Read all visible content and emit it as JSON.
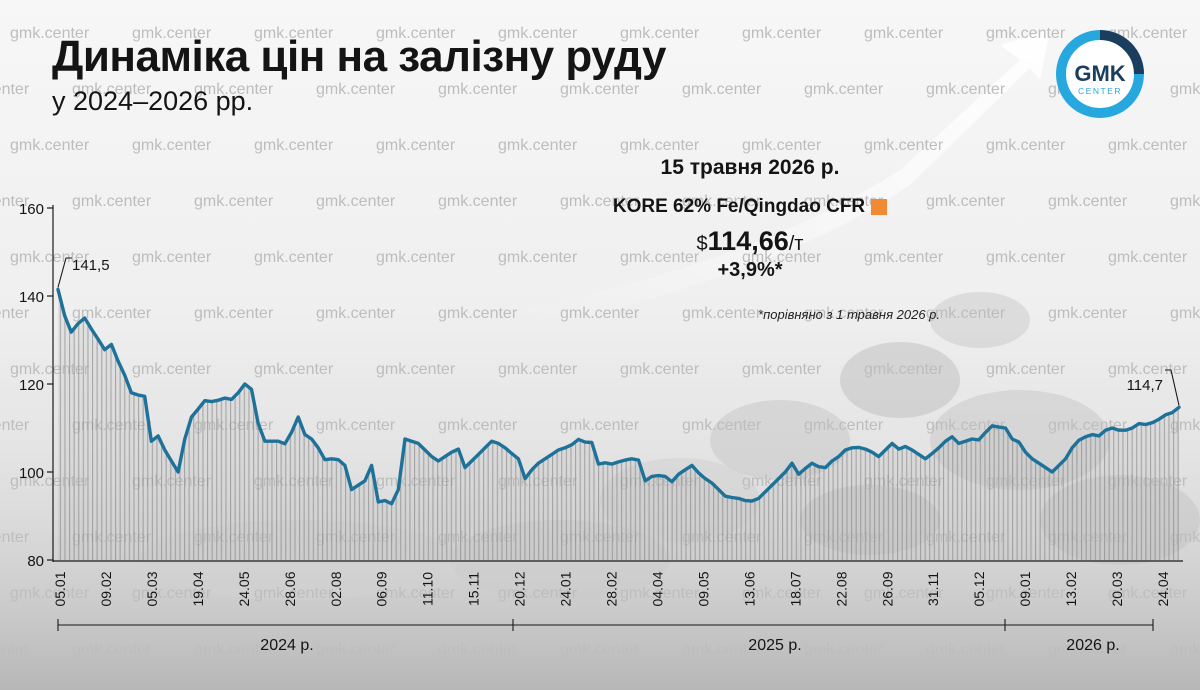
{
  "header": {
    "title": "Динаміка цін на залізну руду",
    "subtitle": "у 2024–2026 рр."
  },
  "logo": {
    "line1": "GMK",
    "line2": "CENTER"
  },
  "watermark": "gmk.center",
  "info": {
    "date": "15 травня 2026 р.",
    "product": "KORE 62% Fe/Qingdao CFR",
    "price_prefix": "$",
    "price_value": "114,66",
    "price_unit": "/т",
    "change": "+3,9%*",
    "note": "*порівняно з 1 травня 2026 р."
  },
  "colors": {
    "line": "#1e7199",
    "marker": "#f08a35",
    "text": "#141414"
  },
  "chart_data": {
    "type": "area",
    "y_ticks": [
      "160",
      "140",
      "120",
      "100",
      "80"
    ],
    "ylim": [
      80,
      160
    ],
    "x_tick_labels": [
      "05.01",
      "09.02",
      "05.03",
      "19.04",
      "24.05",
      "28.06",
      "02.08",
      "06.09",
      "11.10",
      "15.11",
      "20.12",
      "24.01",
      "28.02",
      "04.04",
      "09.05",
      "13.06",
      "18.07",
      "22.08",
      "26.09",
      "31.11",
      "05.12",
      "09.01",
      "13.02",
      "20.03",
      "24.04"
    ],
    "years": [
      "2024 р.",
      "2025 р.",
      "2026 р."
    ],
    "annotations": {
      "first": "141,5",
      "last": "114,7"
    },
    "values": [
      141.5,
      135.5,
      131.8,
      133.7,
      135,
      132.5,
      130.2,
      127.8,
      129,
      125.2,
      122,
      118,
      117.5,
      117.2,
      107,
      108.2,
      105,
      102.5,
      100,
      107.5,
      112.5,
      114.3,
      116.2,
      116,
      116.3,
      116.8,
      116.5,
      118,
      120,
      118.8,
      111,
      107,
      107,
      107,
      106.4,
      109,
      112.5,
      108.5,
      107.5,
      105.5,
      102.8,
      103,
      102.8,
      101.5,
      96,
      97,
      98,
      101.5,
      93.2,
      93.5,
      92.8,
      96,
      107.5,
      107,
      106.5,
      105,
      103.5,
      102.5,
      103.5,
      104.5,
      105.2,
      101,
      102.5,
      104,
      105.5,
      107,
      106.5,
      105.5,
      104.2,
      103,
      98.5,
      100.5,
      102,
      103,
      104,
      105,
      105.5,
      106.2,
      107.4,
      106.8,
      106.7,
      101.8,
      102.1,
      101.8,
      102.3,
      102.7,
      103,
      102.7,
      98,
      99,
      99.2,
      99,
      97.8,
      99.5,
      100.5,
      101.5,
      99.8,
      98.5,
      97.5,
      96,
      94.5,
      94.2,
      94,
      93.5,
      93.4,
      94,
      95.5,
      97,
      98.5,
      100,
      102,
      99.5,
      100.8,
      102,
      101.2,
      101,
      102.5,
      103.5,
      105,
      105.5,
      105.6,
      105.2,
      104.5,
      103.5,
      105,
      106.5,
      105.2,
      105.8,
      105,
      104,
      103,
      104.2,
      105.5,
      107,
      108,
      106.5,
      107,
      107.5,
      107.3,
      109,
      110.5,
      110.2,
      110,
      107.5,
      106.8,
      104.5,
      103,
      102,
      101,
      100,
      101.5,
      103,
      105.5,
      107.2,
      108,
      108.5,
      108.2,
      109.5,
      110,
      109.5,
      109.5,
      110,
      111,
      110.8,
      111.2,
      112,
      113,
      113.5,
      114.7
    ]
  }
}
